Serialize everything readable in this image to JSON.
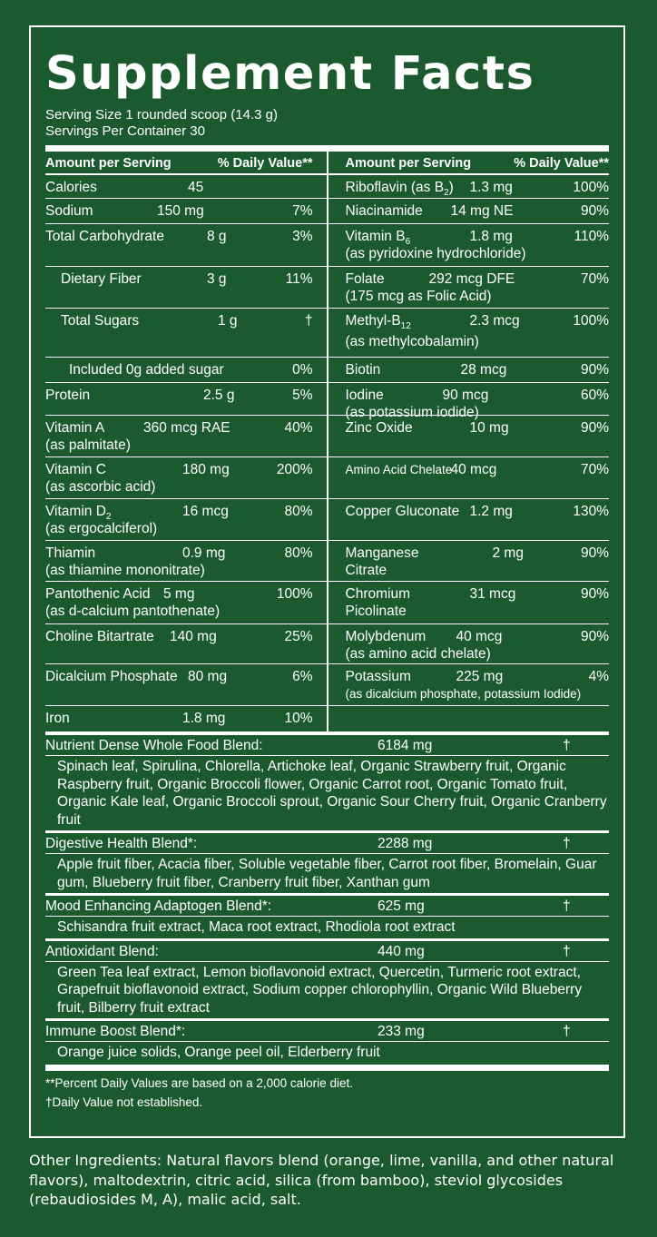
{
  "title": "Supplement Facts",
  "serving_size": "Serving Size 1 rounded scoop (14.3 g)",
  "servings_per_container": "Servings Per Container 30",
  "header": {
    "amount_label": "Amount per Serving",
    "dv_label": "% Daily Value**"
  },
  "left_rows": [
    {
      "name": "Calories",
      "amount": "45",
      "dv": ""
    },
    {
      "name": "Sodium",
      "amount": "150 mg",
      "dv": "7%"
    },
    {
      "name": "Total Carbohydrate",
      "amount": "8 g",
      "dv": "3%"
    },
    {
      "name": "Dietary Fiber",
      "amount": "3 g",
      "dv": "11%"
    },
    {
      "name": "Total Sugars",
      "amount": "1 g",
      "dv": "†"
    },
    {
      "name": "Included 0g added sugar",
      "amount": "",
      "dv": "0%"
    },
    {
      "name": "Protein",
      "amount": "2.5 g",
      "dv": "5%"
    },
    {
      "name": "Vitamin A",
      "amount": "360 mcg RAE",
      "dv": "40%",
      "sub": "(as palmitate)"
    },
    {
      "name": "Vitamin C",
      "amount": "180 mg",
      "dv": "200%",
      "sub": "(as ascorbic acid)"
    },
    {
      "name": "Vitamin D2",
      "amount": "16 mcg",
      "dv": "80%",
      "sub": "(as ergocalciferol)"
    },
    {
      "name": "Thiamin",
      "amount": "0.9 mg",
      "dv": "80%",
      "sub": "(as thiamine mononitrate)"
    },
    {
      "name": "Pantothenic Acid",
      "amount": "5 mg",
      "dv": "100%",
      "sub": "(as d-calcium pantothenate)"
    },
    {
      "name": "Choline Bitartrate",
      "amount": "140 mg",
      "dv": "25%"
    },
    {
      "name": "Dicalcium Phosphate",
      "amount": "80 mg",
      "dv": "6%"
    },
    {
      "name": "Iron",
      "amount": "1.8 mg",
      "dv": "10%"
    }
  ],
  "right_rows": [
    {
      "name": "Riboflavin (as B2)",
      "amount": "1.3 mg",
      "dv": "100%"
    },
    {
      "name": "Niacinamide",
      "amount": "14 mg NE",
      "dv": "90%"
    },
    {
      "name": "Vitamin B6",
      "amount": "1.8 mg",
      "dv": "110%",
      "sub": "(as pyridoxine hydrochloride)"
    },
    {
      "name": "Folate",
      "amount": "292 mcg DFE",
      "dv": "70%",
      "sub": "(175 mcg as Folic Acid)"
    },
    {
      "name": "Methyl-B12",
      "amount": "2.3 mcg",
      "dv": "100%",
      "sub": "(as methylcobalamin)"
    },
    {
      "name": "Biotin",
      "amount": "28 mcg",
      "dv": "90%"
    },
    {
      "name": "Iodine",
      "amount": "90 mcg",
      "dv": "60%",
      "sub": "(as potassium iodide)"
    },
    {
      "name": "Zinc Oxide",
      "amount": "10 mg",
      "dv": "90%"
    },
    {
      "name": "Amino Acid Chelate",
      "amount": "40 mcg",
      "dv": "70%"
    },
    {
      "name": "Copper Gluconate",
      "amount": "1.2 mg",
      "dv": "130%"
    },
    {
      "name": "Manganese",
      "amount": "2 mg",
      "dv": "90%",
      "sub": "Citrate"
    },
    {
      "name": "Chromium",
      "amount": "31 mcg",
      "dv": "90%",
      "sub": "Picolinate"
    },
    {
      "name": "Molybdenum",
      "amount": "40 mcg",
      "dv": "90%",
      "sub": "(as amino acid chelate)"
    },
    {
      "name": "Potassium",
      "amount": "225 mg",
      "dv": "4%",
      "sub": "(as dicalcium phosphate, potassium Iodide)"
    },
    {
      "name": "",
      "amount": "",
      "dv": ""
    }
  ],
  "blends": [
    {
      "name": "Nutrient Dense Whole Food Blend:",
      "amount": "6184 mg",
      "dv": "†",
      "ingredients": "Spinach leaf, Spirulina, Chlorella, Artichoke leaf, Organic Strawberry fruit, Organic Raspberry fruit, Organic Broccoli flower, Organic Carrot root, Organic Tomato fruit, Organic Kale leaf, Organic Broccoli sprout, Organic Sour Cherry fruit, Organic Cranberry fruit"
    },
    {
      "name": "Digestive Health Blend*:",
      "amount": "2288 mg",
      "dv": "†",
      "ingredients": "Apple fruit fiber, Acacia fiber, Soluble vegetable fiber, Carrot root fiber, Bromelain, Guar gum, Blueberry fruit fiber, Cranberry fruit fiber, Xanthan gum"
    },
    {
      "name": "Mood Enhancing Adaptogen Blend*:",
      "amount": "625 mg",
      "dv": "†",
      "ingredients": "Schisandra fruit extract, Maca root extract, Rhodiola root extract"
    },
    {
      "name": "Antioxidant Blend:",
      "amount": "440 mg",
      "dv": "†",
      "ingredients": "Green Tea leaf extract, Lemon bioflavonoid extract, Quercetin, Turmeric root extract, Grapefruit bioflavonoid extract, Sodium copper chlorophyllin, Organic Wild Blueberry fruit, Bilberry fruit extract"
    },
    {
      "name": "Immune Boost Blend*:",
      "amount": "233 mg",
      "dv": "†",
      "ingredients": "Orange juice solids, Orange peel oil, Elderberry fruit"
    }
  ],
  "footnotes": [
    "**Percent Daily Values are based on a 2,000 calorie diet.",
    "†Daily Value not established."
  ],
  "other_ingredients": "Other Ingredients: Natural flavors blend (orange, lime, vanilla, and other natural flavors), maltodextrin, citric acid, silica (from bamboo), steviol glycosides (rebaudiosides M, A), malic acid, salt.",
  "colors": {
    "background": "#1b5a2e",
    "text": "#ffffff"
  }
}
